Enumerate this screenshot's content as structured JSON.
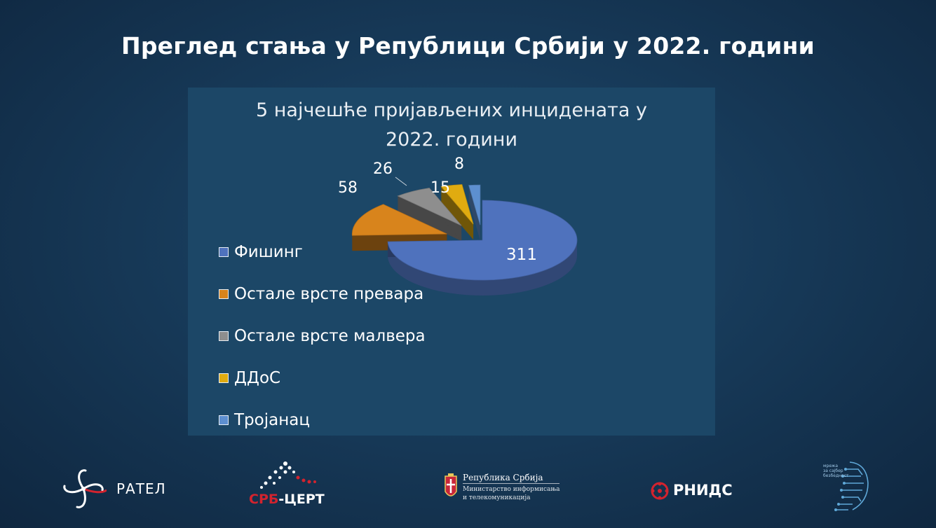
{
  "slide": {
    "title": "Преглед стања у Републици Србији у 2022. години"
  },
  "chart_data": {
    "type": "pie",
    "title_lines": [
      "5 најчешће пријављених инцидената у",
      "2022. години"
    ],
    "categories": [
      "Фишинг",
      "Остале врсте превара",
      "Остале врсте малвера",
      "ДДоС",
      "Тројанац"
    ],
    "values": [
      311,
      58,
      26,
      15,
      8
    ],
    "colors": [
      "#4f72bd",
      "#d8841c",
      "#8e8e8e",
      "#e0ab10",
      "#5d8fd0"
    ],
    "data_labels": [
      "311",
      "58",
      "26",
      "15",
      "8"
    ],
    "legend_position": "left",
    "exploded": true,
    "three_d": true
  },
  "footer": {
    "ratel": "РАТЕЛ",
    "srbcert_a": "СРБ",
    "srbcert_b": "-ЦЕРТ",
    "gov_line1": "Република Србија",
    "gov_line2": "Министарство информисања",
    "gov_line3": "и телекомуникација",
    "rnids": "РНИДС",
    "cyber_line1": "мрежа",
    "cyber_line2": "за сајбер",
    "cyber_line3": "безбедност"
  }
}
